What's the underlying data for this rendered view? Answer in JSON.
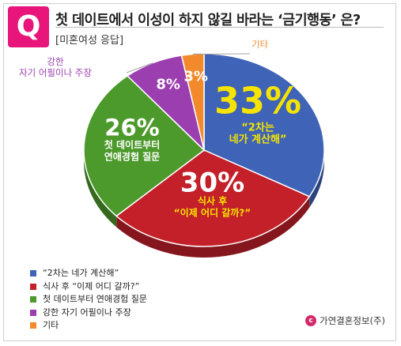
{
  "header": {
    "badge": "Q",
    "title": "첫 데이트에서 이성이 하지 않길 바라는 ‘금기행동’ 은?",
    "subtitle": "[미혼여성 응답]"
  },
  "chart_data": {
    "type": "pie",
    "categories": [
      "“2차는 네가 계산해”",
      "식사 후 “이제 어디 갈까?”",
      "첫 데이트부터 연애경험 질문",
      "강한 자기 어필이나 주장",
      "기타"
    ],
    "values": [
      33,
      30,
      26,
      8,
      3
    ],
    "value_labels": [
      "33%",
      "30%",
      "26%",
      "8%",
      "3%"
    ],
    "slice_labels": [
      [
        "“2차는",
        "네가 계산해”"
      ],
      [
        "식사 후",
        "“이제 어디 갈까?”"
      ],
      [
        "첫 데이트부터",
        "연애경험 질문"
      ],
      [],
      []
    ],
    "callout_labels": [
      null,
      null,
      null,
      [
        "강한",
        "자기 어필이나 주장"
      ],
      [
        "기타"
      ]
    ],
    "colors": [
      "#3f63b6",
      "#c3202a",
      "#4d9a2c",
      "#9b3fb0",
      "#f28a2c"
    ],
    "start_angle_deg": 0,
    "direction": "clockwise",
    "legend_position": "bottom-left"
  },
  "source": {
    "icon": "copyright-icon",
    "icon_glyph": "ⓒ",
    "text": "가연결혼정보(주)"
  }
}
